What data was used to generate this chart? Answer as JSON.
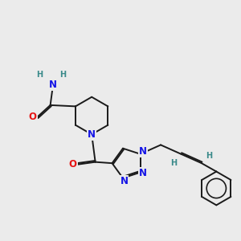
{
  "bg_color": "#ebebeb",
  "bond_color": "#1a1a1a",
  "N_color": "#1414e6",
  "O_color": "#e61414",
  "H_color": "#3a8a8a",
  "font_size_atom": 8.5,
  "font_size_H": 7.0,
  "line_width": 1.4,
  "dbo": 0.055,
  "xlim": [
    0,
    10
  ],
  "ylim": [
    0,
    10
  ]
}
